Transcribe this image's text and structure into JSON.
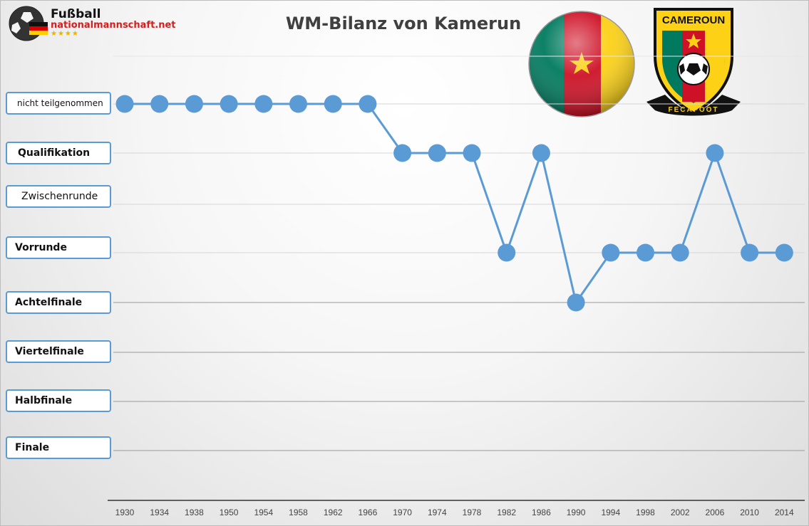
{
  "logo": {
    "line1": "Fußball",
    "line2": "nationalmannschaft.net",
    "stars": "★★★★",
    "icon": "soccer-ball-with-german-flag-icon"
  },
  "badge": {
    "text_top": "CAMEROUN",
    "text_bottom": "FECAFOOT"
  },
  "flag": {
    "icon": "cameroon-flag-sphere-icon",
    "colors": [
      "#007a5e",
      "#ce1126",
      "#fcd116"
    ]
  },
  "chart_data": {
    "type": "line",
    "title": "WM-Bilanz von Kamerun",
    "categories": [
      "1930",
      "1934",
      "1938",
      "1950",
      "1954",
      "1958",
      "1962",
      "1966",
      "1970",
      "1974",
      "1978",
      "1982",
      "1986",
      "1990",
      "1994",
      "1998",
      "2002",
      "2006",
      "2010",
      "2014"
    ],
    "y_levels": [
      "nicht teilgenommen",
      "Qualifikation",
      "Zwischenrunde",
      "Vorrunde",
      "Achtelfinale",
      "Viertelfinale",
      "Halbfinale",
      "Finale"
    ],
    "values": [
      "nicht teilgenommen",
      "nicht teilgenommen",
      "nicht teilgenommen",
      "nicht teilgenommen",
      "nicht teilgenommen",
      "nicht teilgenommen",
      "nicht teilgenommen",
      "nicht teilgenommen",
      "Qualifikation",
      "Qualifikation",
      "Qualifikation",
      "Vorrunde",
      "Qualifikation",
      "Achtelfinale",
      "Vorrunde",
      "Vorrunde",
      "Vorrunde",
      "Qualifikation",
      "Vorrunde",
      "Vorrunde"
    ],
    "color": "#5b9bd5",
    "grid": true
  }
}
